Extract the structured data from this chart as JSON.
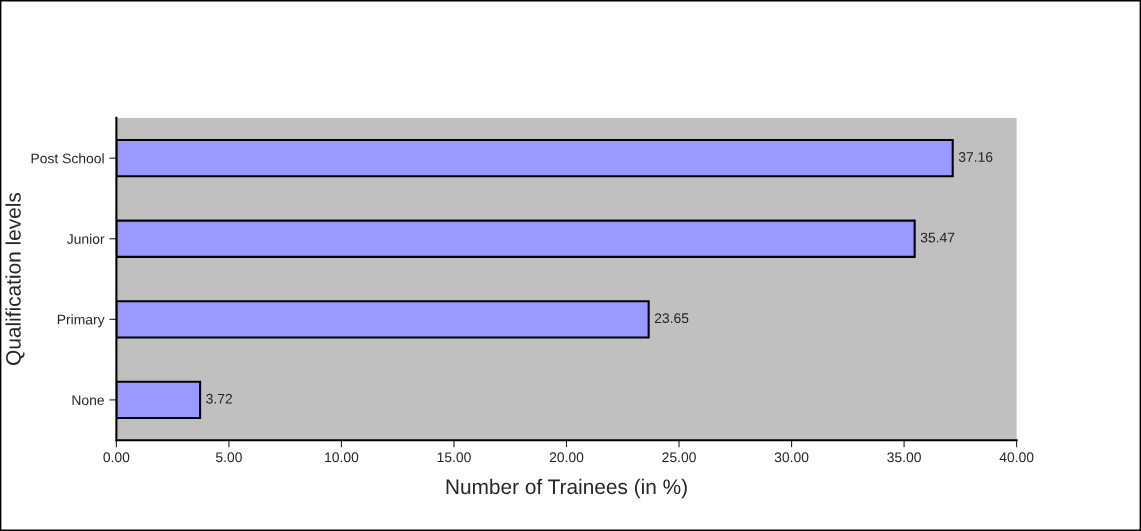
{
  "chart_data": {
    "type": "bar",
    "orientation": "horizontal",
    "xlabel": "Number of Trainees (in %)",
    "ylabel": "Qualification levels",
    "categories": [
      "Post School",
      "Junior",
      "Primary",
      "None"
    ],
    "values": [
      37.16,
      35.47,
      23.65,
      3.72
    ],
    "color": "#9999ff",
    "data_labels": true,
    "xlim": [
      0,
      40
    ],
    "xticks": [
      {
        "value": 0,
        "label": "0.00"
      },
      {
        "value": 5,
        "label": "5.00"
      },
      {
        "value": 10,
        "label": "10.00"
      },
      {
        "value": 15,
        "label": "15.00"
      },
      {
        "value": 20,
        "label": "20.00"
      },
      {
        "value": 25,
        "label": "25.00"
      },
      {
        "value": 30,
        "label": "30.00"
      },
      {
        "value": 35,
        "label": "35.00"
      },
      {
        "value": 40,
        "label": "40.00"
      }
    ],
    "grid": false
  }
}
